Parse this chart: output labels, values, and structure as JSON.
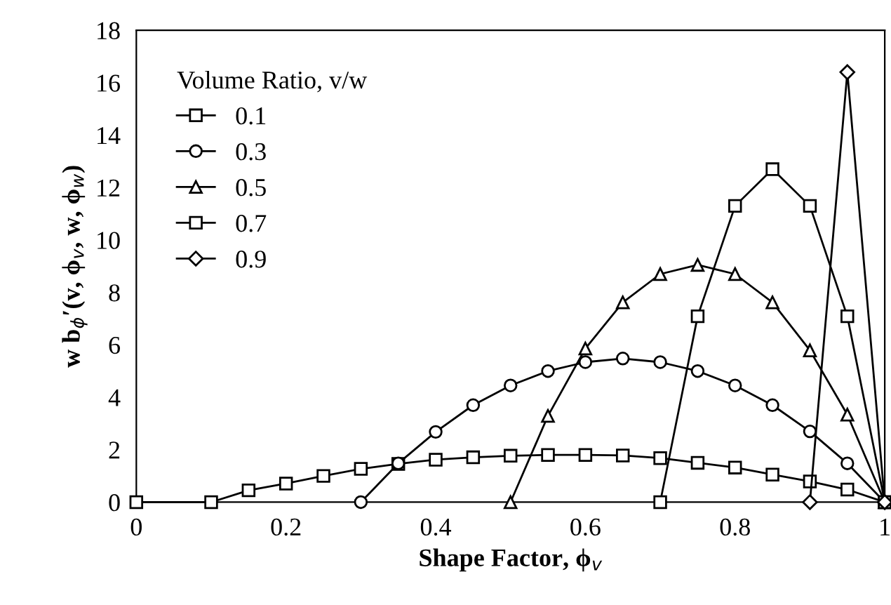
{
  "chart_data": {
    "type": "line",
    "xlabel": "Shape Factor, ϕ$_{v}$",
    "ylabel": "w b$_{ϕ}$′(v, ϕ$_{v}$, w, ϕ$_{w}$)",
    "legend_title": "Volume Ratio, v/w",
    "legend": "top left",
    "grid": false,
    "xlim": [
      0,
      1
    ],
    "xticks": [
      0,
      0.2,
      0.4,
      0.6,
      0.8,
      1
    ],
    "ylim": [
      0,
      18
    ],
    "yticks": [
      0,
      2,
      4,
      6,
      8,
      10,
      12,
      14,
      16,
      18
    ],
    "line_style": "solid",
    "series": [
      {
        "name": "0.1",
        "color": "#000000",
        "marker": "square",
        "x": [
          0,
          0.1,
          0.15,
          0.2,
          0.25,
          0.3,
          0.35,
          0.4,
          0.45,
          0.5,
          0.55,
          0.6,
          0.65,
          0.7,
          0.75,
          0.8,
          0.85,
          0.9,
          0.95,
          1
        ],
        "values": [
          0,
          0,
          0.45,
          0.71,
          1.0,
          1.27,
          1.46,
          1.62,
          1.71,
          1.77,
          1.8,
          1.8,
          1.78,
          1.68,
          1.5,
          1.32,
          1.05,
          0.79,
          0.48,
          0
        ]
      },
      {
        "name": "0.3",
        "color": "#000000",
        "marker": "circle",
        "x": [
          0.3,
          0.35,
          0.4,
          0.45,
          0.5,
          0.55,
          0.6,
          0.65,
          0.7,
          0.75,
          0.8,
          0.85,
          0.9,
          0.95,
          1
        ],
        "values": [
          0,
          1.48,
          2.68,
          3.7,
          4.45,
          5.0,
          5.34,
          5.48,
          5.34,
          5.0,
          4.45,
          3.7,
          2.7,
          1.48,
          0
        ]
      },
      {
        "name": "0.5",
        "color": "#000000",
        "marker": "triangle",
        "x": [
          0.5,
          0.55,
          0.6,
          0.65,
          0.7,
          0.75,
          0.8,
          0.85,
          0.9,
          0.95,
          1
        ],
        "values": [
          0,
          3.29,
          5.86,
          7.62,
          8.7,
          9.05,
          8.7,
          7.62,
          5.79,
          3.34,
          0
        ]
      },
      {
        "name": "0.7",
        "color": "#000000",
        "marker": "square",
        "x": [
          0.7,
          0.75,
          0.8,
          0.85,
          0.9,
          0.95,
          1
        ],
        "values": [
          0,
          7.09,
          11.3,
          12.7,
          11.3,
          7.09,
          0
        ]
      },
      {
        "name": "0.9",
        "color": "#000000",
        "marker": "diamond",
        "x": [
          0.9,
          0.95,
          1
        ],
        "values": [
          0,
          16.4,
          0
        ]
      }
    ]
  }
}
